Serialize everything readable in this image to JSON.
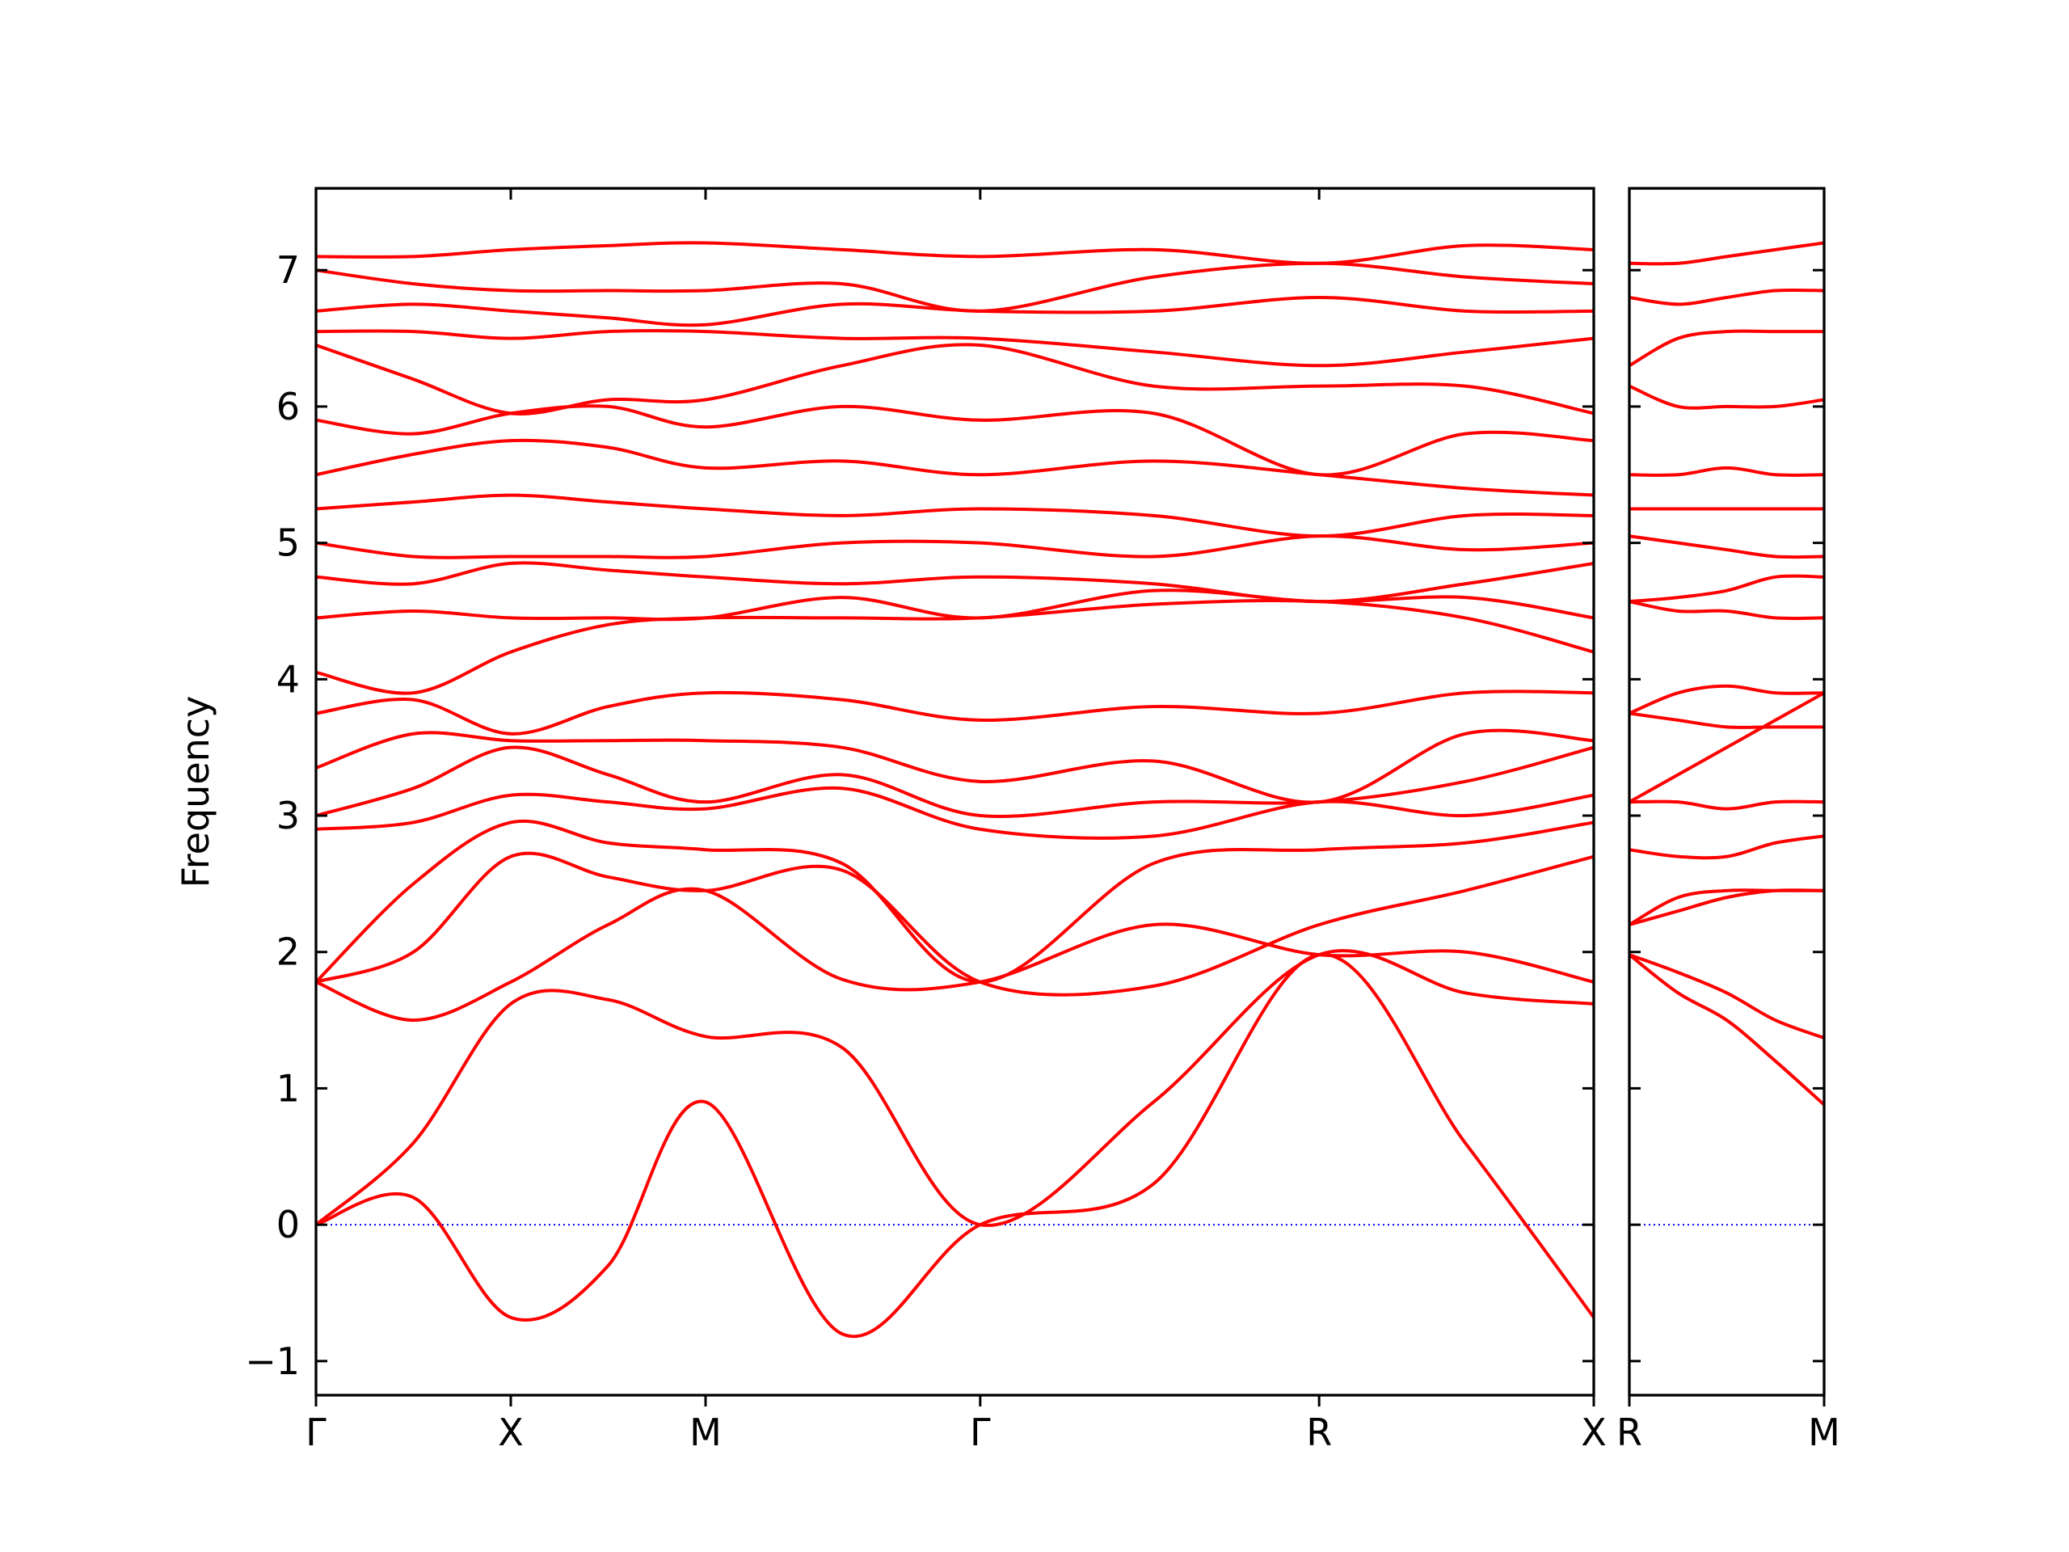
{
  "chart_data": [
    {
      "type": "line",
      "ylabel": "Frequency",
      "color": "#ff0000",
      "x": [
        0,
        0.5,
        1,
        1.5,
        2,
        2.7,
        3.41,
        4.3,
        5.15,
        5.9,
        6.56
      ],
      "xlim": [
        0,
        6.56
      ],
      "xticks": [
        {
          "value": 0,
          "label": "Γ"
        },
        {
          "value": 1,
          "label": "X"
        },
        {
          "value": 2,
          "label": "M"
        },
        {
          "value": 3.41,
          "label": "Γ"
        },
        {
          "value": 5.15,
          "label": "R"
        },
        {
          "value": 6.56,
          "label": "X"
        }
      ],
      "ylim": [
        -1.25,
        7.6
      ],
      "yticks": [
        {
          "value": -1,
          "label": "−1"
        },
        0,
        1,
        2,
        3,
        4,
        5,
        6,
        7
      ],
      "show_ytick_labels": true,
      "hline": 0,
      "hline_color": "#0000ff",
      "series": [
        {
          "values": [
            0,
            0.2,
            -0.68,
            -0.3,
            0.9,
            -0.8,
            0,
            0.3,
            1.98,
            0.6,
            -0.68
          ]
        },
        {
          "values": [
            0,
            0.6,
            1.62,
            1.65,
            1.38,
            1.3,
            0,
            0.9,
            1.98,
            1.7,
            1.62
          ]
        },
        {
          "values": [
            1.78,
            1.5,
            1.78,
            2.2,
            2.45,
            1.8,
            1.78,
            2.2,
            1.98,
            2.0,
            1.78
          ]
        },
        {
          "values": [
            1.78,
            2.0,
            2.7,
            2.55,
            2.45,
            2.6,
            1.78,
            1.75,
            2.2,
            2.45,
            2.7
          ]
        },
        {
          "values": [
            1.78,
            2.5,
            2.95,
            2.8,
            2.75,
            2.65,
            1.78,
            2.65,
            2.75,
            2.8,
            2.95
          ]
        },
        {
          "values": [
            2.9,
            2.95,
            3.15,
            3.1,
            3.05,
            3.2,
            2.9,
            2.85,
            3.1,
            3.0,
            3.15
          ]
        },
        {
          "values": [
            3.0,
            3.2,
            3.5,
            3.3,
            3.1,
            3.3,
            3.0,
            3.1,
            3.1,
            3.25,
            3.5
          ]
        },
        {
          "values": [
            3.35,
            3.6,
            3.55,
            3.55,
            3.55,
            3.5,
            3.25,
            3.4,
            3.1,
            3.6,
            3.55
          ]
        },
        {
          "values": [
            3.75,
            3.85,
            3.6,
            3.8,
            3.9,
            3.85,
            3.7,
            3.8,
            3.75,
            3.9,
            3.9
          ]
        },
        {
          "values": [
            4.05,
            3.9,
            4.2,
            4.4,
            4.45,
            4.45,
            4.45,
            4.55,
            4.57,
            4.45,
            4.2
          ]
        },
        {
          "values": [
            4.45,
            4.5,
            4.45,
            4.45,
            4.45,
            4.6,
            4.45,
            4.65,
            4.57,
            4.6,
            4.45
          ]
        },
        {
          "values": [
            4.75,
            4.7,
            4.85,
            4.8,
            4.75,
            4.7,
            4.75,
            4.7,
            4.57,
            4.7,
            4.85
          ]
        },
        {
          "values": [
            5.0,
            4.9,
            4.9,
            4.9,
            4.9,
            5.0,
            5.0,
            4.9,
            5.05,
            4.95,
            5.0
          ]
        },
        {
          "values": [
            5.25,
            5.3,
            5.35,
            5.3,
            5.25,
            5.2,
            5.25,
            5.2,
            5.05,
            5.2,
            5.2
          ]
        },
        {
          "values": [
            5.5,
            5.65,
            5.75,
            5.7,
            5.55,
            5.6,
            5.5,
            5.6,
            5.5,
            5.4,
            5.35
          ]
        },
        {
          "values": [
            5.9,
            5.8,
            5.95,
            6.0,
            5.85,
            6.0,
            5.9,
            5.95,
            5.5,
            5.8,
            5.75
          ]
        },
        {
          "values": [
            6.45,
            6.2,
            5.95,
            6.05,
            6.05,
            6.3,
            6.45,
            6.15,
            6.15,
            6.15,
            5.95
          ]
        },
        {
          "values": [
            6.55,
            6.55,
            6.5,
            6.55,
            6.55,
            6.5,
            6.5,
            6.4,
            6.3,
            6.4,
            6.5
          ]
        },
        {
          "values": [
            6.7,
            6.75,
            6.7,
            6.65,
            6.6,
            6.75,
            6.7,
            6.7,
            6.8,
            6.7,
            6.7
          ]
        },
        {
          "values": [
            7.0,
            6.9,
            6.85,
            6.85,
            6.85,
            6.9,
            6.7,
            6.95,
            7.05,
            6.95,
            6.9
          ]
        },
        {
          "values": [
            7.1,
            7.1,
            7.15,
            7.18,
            7.2,
            7.15,
            7.1,
            7.15,
            7.05,
            7.18,
            7.15
          ]
        }
      ]
    },
    {
      "type": "line",
      "color": "#ff0000",
      "x": [
        0,
        0.25,
        0.5,
        0.75,
        1
      ],
      "xlim": [
        0,
        1
      ],
      "xticks": [
        {
          "value": 0,
          "label": "R"
        },
        {
          "value": 1,
          "label": "M"
        }
      ],
      "ylim": [
        -1.25,
        7.6
      ],
      "yticks": [
        -1,
        0,
        1,
        2,
        3,
        4,
        5,
        6,
        7
      ],
      "show_ytick_labels": false,
      "hline": 0,
      "hline_color": "#0000ff",
      "series": [
        {
          "values": [
            1.98,
            1.7,
            1.5,
            1.2,
            0.88
          ]
        },
        {
          "values": [
            1.98,
            1.85,
            1.7,
            1.5,
            1.37
          ]
        },
        {
          "values": [
            2.2,
            2.3,
            2.4,
            2.45,
            2.45
          ]
        },
        {
          "values": [
            2.2,
            2.4,
            2.45,
            2.45,
            2.45
          ]
        },
        {
          "values": [
            2.75,
            2.7,
            2.7,
            2.8,
            2.85
          ]
        },
        {
          "values": [
            3.1,
            3.1,
            3.05,
            3.1,
            3.1
          ]
        },
        {
          "values": [
            3.1,
            3.3,
            3.5,
            3.7,
            3.9
          ]
        },
        {
          "values": [
            3.75,
            3.7,
            3.65,
            3.65,
            3.65
          ]
        },
        {
          "values": [
            3.75,
            3.9,
            3.95,
            3.9,
            3.9
          ]
        },
        {
          "values": [
            4.57,
            4.5,
            4.5,
            4.45,
            4.45
          ]
        },
        {
          "values": [
            4.57,
            4.6,
            4.65,
            4.75,
            4.75
          ]
        },
        {
          "values": [
            5.05,
            5.0,
            4.95,
            4.9,
            4.9
          ]
        },
        {
          "values": [
            5.25,
            5.25,
            5.25,
            5.25,
            5.25
          ]
        },
        {
          "values": [
            5.5,
            5.5,
            5.55,
            5.5,
            5.5
          ]
        },
        {
          "values": [
            6.15,
            6.0,
            6.0,
            6.0,
            6.05
          ]
        },
        {
          "values": [
            6.3,
            6.5,
            6.55,
            6.55,
            6.55
          ]
        },
        {
          "values": [
            6.8,
            6.75,
            6.8,
            6.85,
            6.85
          ]
        },
        {
          "values": [
            7.05,
            7.05,
            7.1,
            7.15,
            7.2
          ]
        }
      ]
    }
  ]
}
